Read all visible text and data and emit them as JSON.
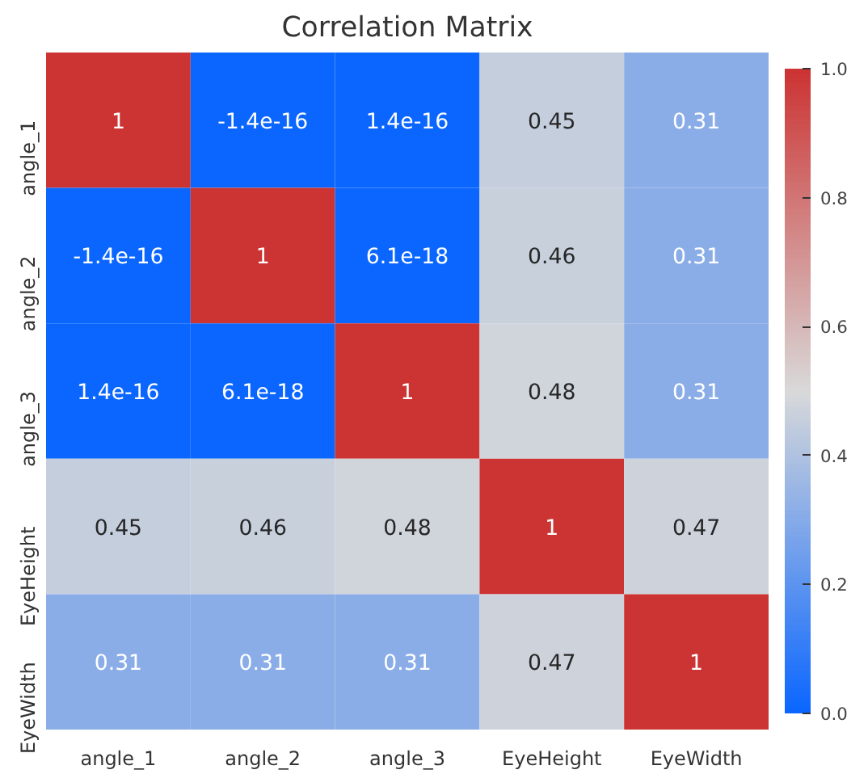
{
  "chart_data": {
    "type": "heatmap",
    "title": "Correlation Matrix",
    "categories": [
      "angle_1",
      "angle_2",
      "angle_3",
      "EyeHeight",
      "EyeWidth"
    ],
    "y_categories": [
      "angle_1",
      "angle_2",
      "angle_3",
      "EyeHeight",
      "EyeWidth"
    ],
    "cells": [
      [
        1,
        -1.4e-16,
        1.4e-16,
        0.45,
        0.31
      ],
      [
        -1.4e-16,
        1,
        6.1e-18,
        0.46,
        0.31
      ],
      [
        1.4e-16,
        6.1e-18,
        1,
        0.48,
        0.31
      ],
      [
        0.45,
        0.46,
        0.48,
        1,
        0.47
      ],
      [
        0.31,
        0.31,
        0.31,
        0.47,
        1
      ]
    ],
    "data_labels": true,
    "clim": [
      0,
      1
    ],
    "cticks": [
      {
        "value": 0,
        "label": "0.0"
      },
      {
        "value": 0.2,
        "label": "0.2"
      },
      {
        "value": 0.4,
        "label": "0.4"
      },
      {
        "value": 0.6,
        "label": "0.6"
      },
      {
        "value": 0.8,
        "label": "0.8"
      },
      {
        "value": 1,
        "label": "1.0"
      }
    ]
  }
}
